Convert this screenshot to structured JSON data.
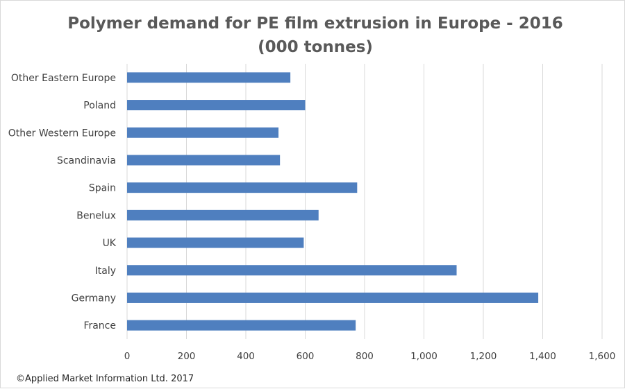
{
  "chart_data": {
    "type": "bar",
    "orientation": "horizontal",
    "title_line1": "Polymer demand for PE film extrusion in Europe - 2016",
    "title_line2": "(000 tonnes)",
    "categories": [
      "Other Eastern Europe",
      "Poland",
      "Other Western Europe",
      "Scandinavia",
      "Spain",
      "Benelux",
      "UK",
      "Italy",
      "Germany",
      "France"
    ],
    "values": [
      550,
      600,
      510,
      515,
      775,
      645,
      595,
      1110,
      1385,
      770
    ],
    "xlim": [
      0,
      1600
    ],
    "xticks": [
      "0",
      "200",
      "400",
      "600",
      "800",
      "1,000",
      "1,200",
      "1,400",
      "1,600"
    ],
    "grid": "vertical",
    "legend": "none",
    "bar_color": "#4f7fbf",
    "grid_color": "#d9d9d9"
  },
  "footer": {
    "copyright": "©Applied Market Information Ltd. 2017"
  }
}
